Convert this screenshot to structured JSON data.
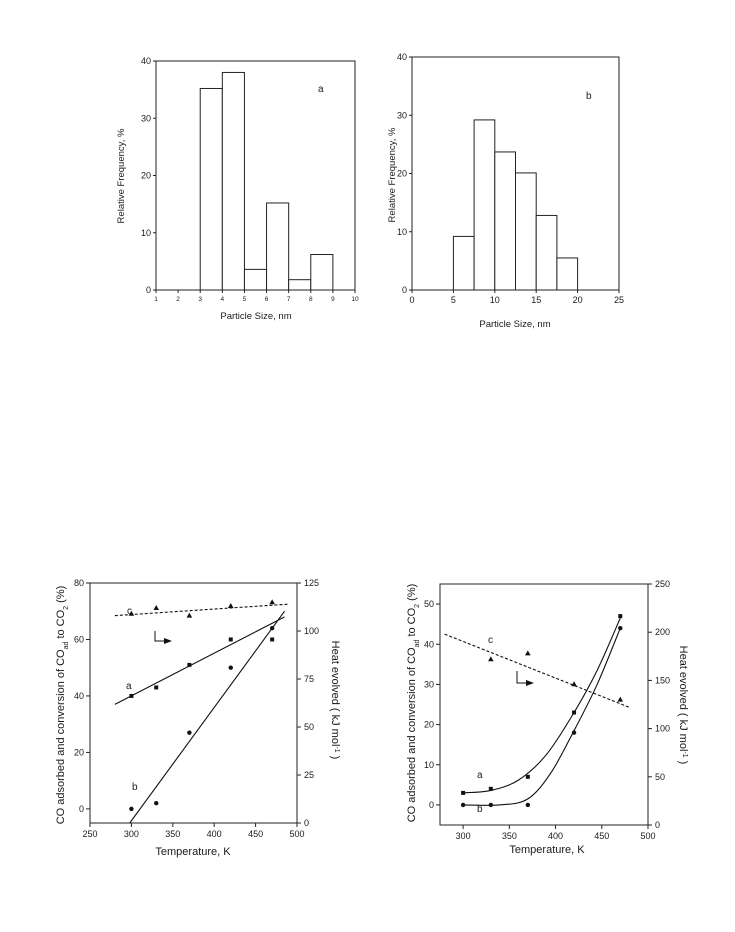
{
  "chart_data": [
    {
      "type": "bar",
      "panel_label": "a",
      "xlabel": "Particle Size, nm",
      "ylabel": "Relative Frequency, %",
      "xlim": [
        1,
        10
      ],
      "ylim": [
        0,
        40
      ],
      "xticks": [
        1,
        2,
        3,
        4,
        5,
        6,
        7,
        8,
        9,
        10
      ],
      "yticks": [
        0,
        10,
        20,
        30,
        40
      ],
      "bins": [
        {
          "from": 3,
          "to": 4,
          "value": 35.2
        },
        {
          "from": 4,
          "to": 5,
          "value": 38.0
        },
        {
          "from": 5,
          "to": 6,
          "value": 3.6
        },
        {
          "from": 6,
          "to": 7,
          "value": 15.2
        },
        {
          "from": 7,
          "to": 8,
          "value": 1.8
        },
        {
          "from": 8,
          "to": 9,
          "value": 6.2
        }
      ]
    },
    {
      "type": "bar",
      "panel_label": "b",
      "xlabel": "Particle Size, nm",
      "ylabel": "Relative Frequency, %",
      "xlim": [
        0,
        25
      ],
      "ylim": [
        0,
        40
      ],
      "xticks": [
        0,
        5,
        10,
        15,
        20,
        25
      ],
      "yticks": [
        0,
        10,
        20,
        30,
        40
      ],
      "bins": [
        {
          "from": 5,
          "to": 7.5,
          "value": 9.2
        },
        {
          "from": 7.5,
          "to": 10,
          "value": 29.2
        },
        {
          "from": 10,
          "to": 12.5,
          "value": 23.7
        },
        {
          "from": 12.5,
          "to": 15,
          "value": 20.1
        },
        {
          "from": 15,
          "to": 17.5,
          "value": 12.8
        },
        {
          "from": 17.5,
          "to": 20,
          "value": 5.5
        }
      ]
    },
    {
      "type": "scatter",
      "xlabel": "Temperature, K",
      "ylabel_left": [
        "CO adsorbed and conversion of CO",
        "ad",
        " to CO",
        "2",
        " (%)"
      ],
      "ylabel_right": [
        "Heat evolved ( kJ mol",
        "-1",
        " )"
      ],
      "xlim": [
        250,
        500
      ],
      "ylim_left": [
        -5,
        80
      ],
      "ylim_right": [
        0,
        125
      ],
      "xticks": [
        250,
        300,
        350,
        400,
        450,
        500
      ],
      "yticks_left": [
        0,
        20,
        40,
        60,
        80
      ],
      "yticks_right": [
        0,
        25,
        50,
        75,
        100,
        125
      ],
      "series": [
        {
          "name": "a",
          "axis": "left",
          "marker": "square",
          "x": [
            300,
            330,
            370,
            420,
            470
          ],
          "y": [
            40,
            43,
            51,
            60,
            60
          ],
          "fit": {
            "kind": "line",
            "x": [
              280,
              485
            ],
            "y": [
              37,
              68
            ]
          }
        },
        {
          "name": "b",
          "axis": "left",
          "marker": "circle",
          "x": [
            300,
            330,
            370,
            420,
            470
          ],
          "y": [
            0,
            2,
            27,
            50,
            64
          ],
          "fit": {
            "kind": "line",
            "x": [
              298,
              485
            ],
            "y": [
              -5,
              70
            ]
          }
        },
        {
          "name": "c",
          "axis": "right",
          "marker": "triangle",
          "x": [
            300,
            330,
            370,
            420,
            470
          ],
          "y": [
            109,
            112,
            108,
            113,
            115
          ],
          "fit": {
            "kind": "dashed",
            "x": [
              280,
              490
            ],
            "y": [
              108,
              114
            ]
          }
        }
      ]
    },
    {
      "type": "scatter",
      "xlabel": "Temperature, K",
      "ylabel_left": [
        "CO adsorbed and conversion of CO",
        "ad",
        " to CO",
        "2",
        " (%)"
      ],
      "ylabel_right": [
        "Heat  evolved  ( kJ mol",
        "-1",
        " )"
      ],
      "xlim": [
        275,
        500
      ],
      "ylim_left": [
        -5,
        55
      ],
      "ylim_right": [
        0,
        250
      ],
      "xticks": [
        300,
        350,
        400,
        450,
        500
      ],
      "yticks_left": [
        0,
        10,
        20,
        30,
        40,
        50
      ],
      "yticks_right": [
        0,
        50,
        100,
        150,
        200,
        250
      ],
      "series": [
        {
          "name": "a",
          "axis": "left",
          "marker": "square",
          "x": [
            300,
            330,
            370,
            420,
            470
          ],
          "y": [
            3,
            4,
            7,
            23,
            47
          ],
          "fit": {
            "kind": "curve",
            "x": [
              300,
              330,
              360,
              390,
              420,
              445,
              470
            ],
            "y": [
              3,
              3.6,
              6.2,
              12.5,
              23,
              33.5,
              46.5
            ]
          }
        },
        {
          "name": "b",
          "axis": "left",
          "marker": "circle",
          "x": [
            300,
            330,
            370,
            420,
            470
          ],
          "y": [
            0,
            0,
            0,
            18,
            44
          ],
          "fit": {
            "kind": "curve",
            "x": [
              300,
              340,
              370,
              395,
              420,
              445,
              470
            ],
            "y": [
              0,
              0,
              1.5,
              8,
              18.5,
              30,
              44
            ]
          }
        },
        {
          "name": "c",
          "axis": "right",
          "marker": "triangle",
          "x": [
            330,
            370,
            420,
            470
          ],
          "y": [
            172,
            178,
            146,
            130
          ],
          "fit": {
            "kind": "dashed",
            "x": [
              280,
              480
            ],
            "y": [
              198,
              122
            ]
          }
        }
      ]
    }
  ]
}
